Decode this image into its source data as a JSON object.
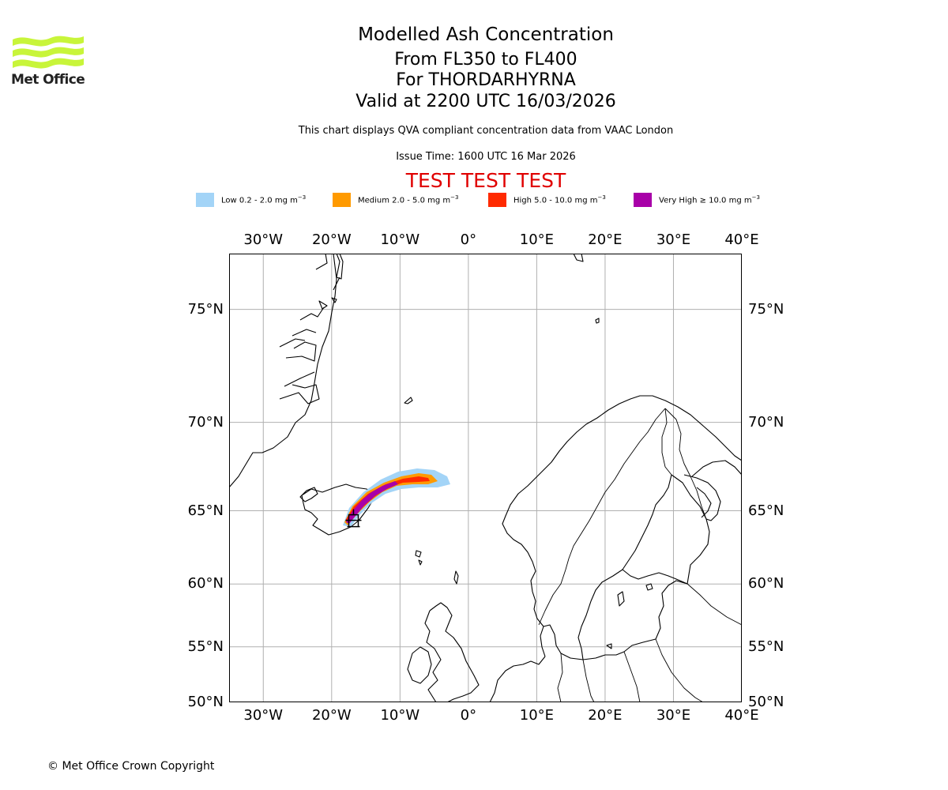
{
  "brand": {
    "logo_text": "Met Office"
  },
  "header": {
    "title": "Modelled Ash Concentration",
    "flight_levels": "From FL350 to FL400",
    "volcano": "For THORDARHYRNA",
    "valid_time": "Valid at 2200 UTC 16/03/2026",
    "description": "This chart displays QVA compliant concentration data from VAAC London",
    "issue_time": "Issue Time: 1600 UTC 16 Mar 2026",
    "test_banner": "TEST TEST TEST"
  },
  "legend": [
    {
      "label": "Low 0.2 - 2.0 mg m",
      "superscript": "−3",
      "color": "#a3d4f7"
    },
    {
      "label": "Medium 2.0 - 5.0 mg m",
      "superscript": "−3",
      "color": "#ff9a00"
    },
    {
      "label": "High 5.0 - 10.0 mg m",
      "superscript": "−3",
      "color": "#ff2a00"
    },
    {
      "label": "Very High  ≥  10.0 mg m",
      "superscript": "−3",
      "color": "#a800a8"
    }
  ],
  "map": {
    "lon_labels": [
      "30°W",
      "20°W",
      "10°W",
      "0°",
      "10°E",
      "20°E",
      "30°E",
      "40°E"
    ],
    "lon_values": [
      -30,
      -20,
      -10,
      0,
      10,
      20,
      30,
      40
    ],
    "lat_labels": [
      "75°N",
      "70°N",
      "65°N",
      "60°N",
      "55°N",
      "50°N"
    ],
    "lat_values": [
      75,
      70,
      65,
      60,
      55,
      50
    ],
    "lon_range": [
      -35,
      40
    ],
    "lat_range": [
      50,
      77
    ],
    "volcano_marker": {
      "lon": -16.8,
      "lat": 64.7
    }
  },
  "footer": {
    "copyright": "© Met Office Crown Copyright"
  }
}
